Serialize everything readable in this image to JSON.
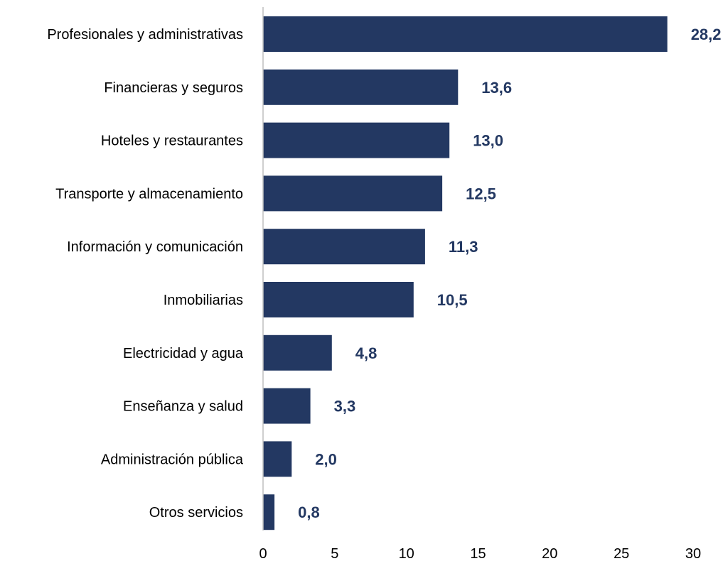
{
  "chart_data": {
    "type": "bar",
    "orientation": "horizontal",
    "title": "",
    "xlabel": "",
    "ylabel": "",
    "categories": [
      "Profesionales y administrativas",
      "Financieras y seguros",
      "Hoteles y restaurantes",
      "Transporte y almacenamiento",
      "Información y comunicación",
      "Inmobiliarias",
      "Electricidad y agua",
      "Enseñanza y salud",
      "Administración pública",
      "Otros servicios"
    ],
    "values": [
      28.2,
      13.6,
      13.0,
      12.5,
      11.3,
      10.5,
      4.8,
      3.3,
      2.0,
      0.8
    ],
    "value_labels": [
      "28,2",
      "13,6",
      "13,0",
      "12,5",
      "11,3",
      "10,5",
      "4,8",
      "3,3",
      "2,0",
      "0,8"
    ],
    "xlim": [
      0,
      30
    ],
    "xticks": [
      0,
      5,
      10,
      15,
      20,
      25,
      30
    ],
    "xtick_labels": [
      "0",
      "5",
      "10",
      "15",
      "20",
      "25",
      "30"
    ],
    "grid": false,
    "legend": "none",
    "bar_color": "#233862",
    "label_color": "#233862",
    "axis_color": "#bfbfbf"
  }
}
